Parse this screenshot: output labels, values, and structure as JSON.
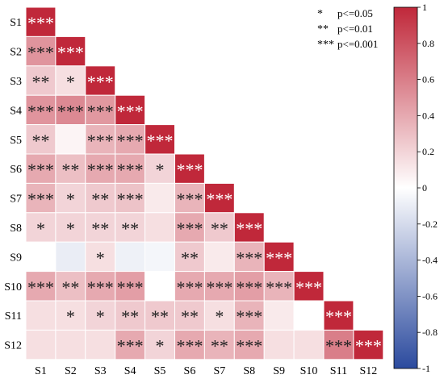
{
  "chart_data": {
    "type": "heatmap",
    "title": "",
    "xlabel": "",
    "ylabel": "",
    "labels": [
      "S1",
      "S2",
      "S3",
      "S4",
      "S5",
      "S6",
      "S7",
      "S8",
      "S9",
      "S10",
      "S11",
      "S12"
    ],
    "values": [
      [
        1.0
      ],
      [
        0.5,
        1.0
      ],
      [
        0.25,
        0.15,
        1.0
      ],
      [
        0.5,
        0.55,
        0.48,
        1.0
      ],
      [
        0.25,
        0.05,
        0.35,
        0.4,
        1.0
      ],
      [
        0.4,
        0.3,
        0.4,
        0.4,
        0.2,
        1.0
      ],
      [
        0.35,
        0.2,
        0.25,
        0.28,
        0.1,
        0.35,
        1.0
      ],
      [
        0.2,
        0.2,
        0.2,
        0.2,
        0.15,
        0.4,
        0.25,
        1.0
      ],
      [
        0.0,
        -0.1,
        0.15,
        -0.08,
        -0.05,
        0.25,
        0.1,
        0.35,
        1.0
      ],
      [
        0.4,
        0.3,
        0.4,
        0.45,
        0.0,
        0.4,
        0.4,
        0.45,
        0.35,
        1.0
      ],
      [
        0.15,
        0.15,
        0.2,
        0.25,
        0.25,
        0.25,
        0.15,
        0.35,
        0.1,
        0.0,
        1.0
      ],
      [
        0.15,
        0.15,
        0.15,
        0.4,
        0.2,
        0.4,
        0.35,
        0.4,
        0.15,
        0.15,
        0.6,
        1.0
      ]
    ],
    "significance": [
      [
        "***"
      ],
      [
        "***",
        "***"
      ],
      [
        "**",
        "*",
        "***"
      ],
      [
        "***",
        "***",
        "***",
        "***"
      ],
      [
        "**",
        "",
        "***",
        "***",
        "***"
      ],
      [
        "***",
        "**",
        "***",
        "***",
        "*",
        "***"
      ],
      [
        "***",
        "*",
        "**",
        "***",
        "",
        "***",
        "***"
      ],
      [
        "*",
        "*",
        "**",
        "**",
        "",
        "***",
        "**",
        "***"
      ],
      [
        "",
        "",
        "*",
        "",
        "",
        "**",
        "",
        "***",
        "***"
      ],
      [
        "***",
        "**",
        "***",
        "***",
        "",
        "***",
        "***",
        "***",
        "***",
        "***"
      ],
      [
        "",
        "*",
        "*",
        "**",
        "**",
        "**",
        "*",
        "***",
        "",
        "",
        "***"
      ],
      [
        "",
        "",
        "",
        "***",
        "*",
        "***",
        "**",
        "***",
        "",
        "",
        "***",
        "***"
      ]
    ],
    "colorbar": {
      "range": [
        -1,
        1
      ],
      "ticks": [
        1,
        0.8,
        0.6,
        0.4,
        0.2,
        0,
        -0.2,
        -0.4,
        -0.6,
        -0.8,
        -1
      ],
      "tick_labels": [
        "1",
        "0.8",
        "0.6",
        "0.4",
        "0.2",
        "0",
        "-0.2",
        "-0.4",
        "-0.6",
        "-0.8",
        "-1"
      ],
      "colors": {
        "negative": "#2b4a9e",
        "zero": "#ffffff",
        "positive": "#c0283a"
      }
    },
    "significance_legend": [
      {
        "symbol": "*",
        "text": "p<=0.05"
      },
      {
        "symbol": "**",
        "text": "p<=0.01"
      },
      {
        "symbol": "***",
        "text": "p<=0.001"
      }
    ]
  }
}
